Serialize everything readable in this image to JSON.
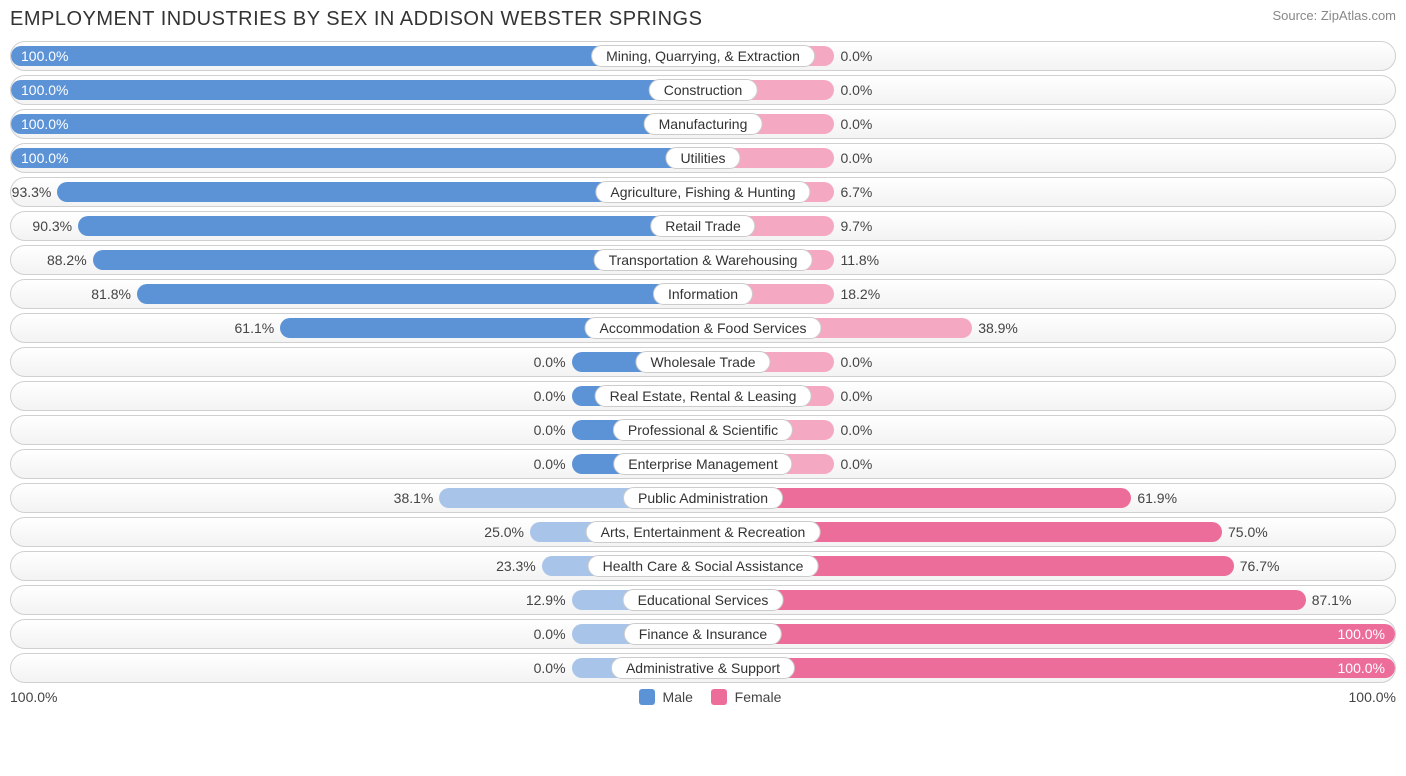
{
  "title": "EMPLOYMENT INDUSTRIES BY SEX IN ADDISON WEBSTER SPRINGS",
  "source": "Source: ZipAtlas.com",
  "chart": {
    "type": "diverging-bar",
    "male_color_strong": "#5c93d6",
    "male_color_light": "#a8c4e8",
    "female_color_strong": "#ed6d9a",
    "female_color_light": "#f4a8c2",
    "track_border": "#d0d0d0",
    "background": "#ffffff",
    "label_fontsize": 14,
    "title_fontsize": 20,
    "min_bar_pct": 19,
    "rows": [
      {
        "label": "Mining, Quarrying, & Extraction",
        "male": 100.0,
        "female": 0.0
      },
      {
        "label": "Construction",
        "male": 100.0,
        "female": 0.0
      },
      {
        "label": "Manufacturing",
        "male": 100.0,
        "female": 0.0
      },
      {
        "label": "Utilities",
        "male": 100.0,
        "female": 0.0
      },
      {
        "label": "Agriculture, Fishing & Hunting",
        "male": 93.3,
        "female": 6.7
      },
      {
        "label": "Retail Trade",
        "male": 90.3,
        "female": 9.7
      },
      {
        "label": "Transportation & Warehousing",
        "male": 88.2,
        "female": 11.8
      },
      {
        "label": "Information",
        "male": 81.8,
        "female": 18.2
      },
      {
        "label": "Accommodation & Food Services",
        "male": 61.1,
        "female": 38.9
      },
      {
        "label": "Wholesale Trade",
        "male": 0.0,
        "female": 0.0
      },
      {
        "label": "Real Estate, Rental & Leasing",
        "male": 0.0,
        "female": 0.0
      },
      {
        "label": "Professional & Scientific",
        "male": 0.0,
        "female": 0.0
      },
      {
        "label": "Enterprise Management",
        "male": 0.0,
        "female": 0.0
      },
      {
        "label": "Public Administration",
        "male": 38.1,
        "female": 61.9
      },
      {
        "label": "Arts, Entertainment & Recreation",
        "male": 25.0,
        "female": 75.0
      },
      {
        "label": "Health Care & Social Assistance",
        "male": 23.3,
        "female": 76.7
      },
      {
        "label": "Educational Services",
        "male": 12.9,
        "female": 87.1
      },
      {
        "label": "Finance & Insurance",
        "male": 0.0,
        "female": 100.0
      },
      {
        "label": "Administrative & Support",
        "male": 0.0,
        "female": 100.0
      }
    ]
  },
  "legend": {
    "male": "Male",
    "female": "Female"
  },
  "axis": {
    "left": "100.0%",
    "right": "100.0%"
  }
}
